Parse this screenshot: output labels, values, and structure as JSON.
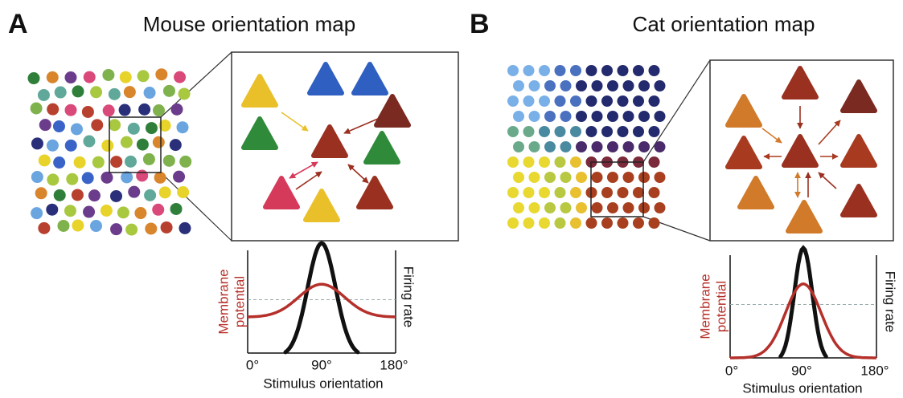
{
  "panels": [
    {
      "label": "A",
      "title": "Mouse orientation map",
      "plot": {
        "y_label": [
          "Membrane",
          "potential"
        ],
        "y2_label": "Firing rate",
        "x_ticks": [
          "0°",
          "90°",
          "180°"
        ],
        "x_label": "Stimulus orientation"
      }
    },
    {
      "label": "B",
      "title": "Cat orientation map",
      "plot": {
        "y_label": [
          "Membrane",
          "potential"
        ],
        "y2_label": "Firing rate",
        "x_ticks": [
          "0°",
          "90°",
          "180°"
        ],
        "x_label": "Stimulus orientation"
      }
    }
  ]
}
